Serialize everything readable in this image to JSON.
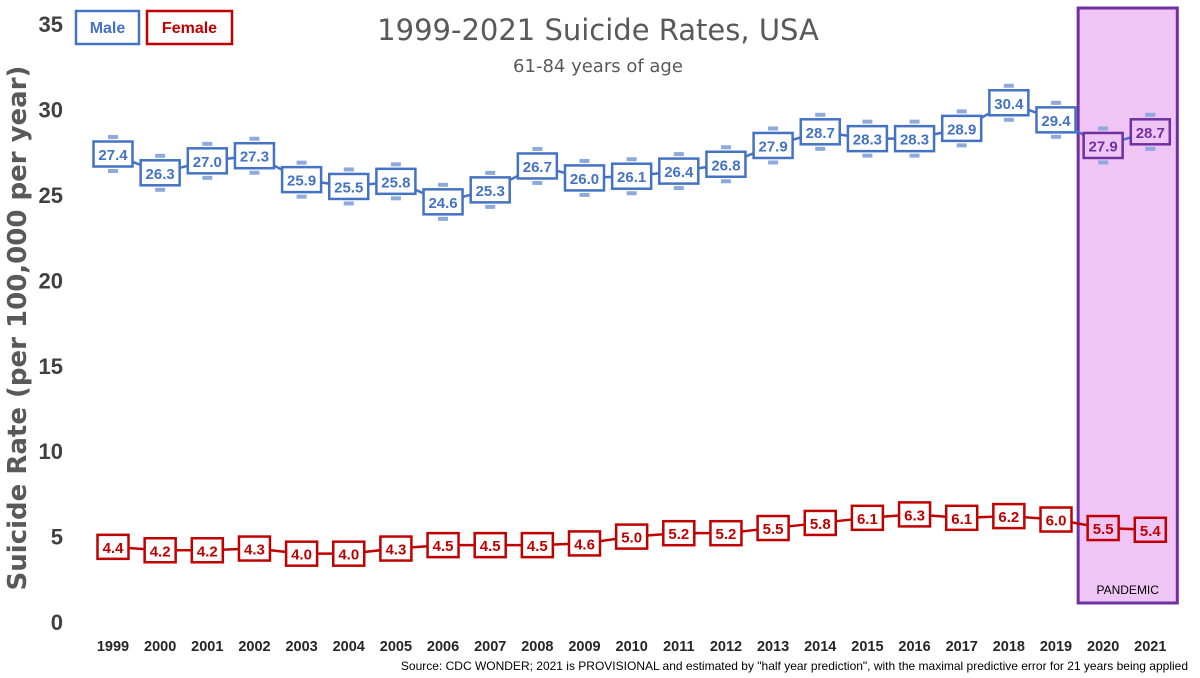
{
  "chart_data": {
    "type": "line",
    "title": "1999-2021 Suicide Rates, USA",
    "subtitle": "61-84 years of age",
    "ylabel": "Suicide Rate (per 100,000 per year)",
    "xlabel": "",
    "ylim": [
      0,
      35
    ],
    "yticks": [
      "0",
      "5",
      "10",
      "15",
      "20",
      "25",
      "30",
      "35"
    ],
    "categories": [
      "1999",
      "2000",
      "2001",
      "2002",
      "2003",
      "2004",
      "2005",
      "2006",
      "2007",
      "2008",
      "2009",
      "2010",
      "2011",
      "2012",
      "2013",
      "2014",
      "2015",
      "2016",
      "2017",
      "2018",
      "2019",
      "2020",
      "2021"
    ],
    "series": [
      {
        "name": "Male",
        "color": "#4472C4",
        "values": [
          27.4,
          26.3,
          27.0,
          27.3,
          25.9,
          25.5,
          25.8,
          24.6,
          25.3,
          26.7,
          26.0,
          26.1,
          26.4,
          26.8,
          27.9,
          28.7,
          28.3,
          28.3,
          28.9,
          30.4,
          29.4,
          27.9,
          28.7
        ],
        "labels": [
          "27.4",
          "26.3",
          "27.0",
          "27.3",
          "25.9",
          "25.5",
          "25.8",
          "24.6",
          "25.3",
          "26.7",
          "26.0",
          "26.1",
          "26.4",
          "26.8",
          "27.9",
          "28.7",
          "28.3",
          "28.3",
          "28.9",
          "30.4",
          "29.4",
          "27.9",
          "28.7"
        ]
      },
      {
        "name": "Female",
        "color": "#C00000",
        "values": [
          4.4,
          4.2,
          4.2,
          4.3,
          4.0,
          4.0,
          4.3,
          4.5,
          4.5,
          4.5,
          4.6,
          5.0,
          5.2,
          5.2,
          5.5,
          5.8,
          6.1,
          6.3,
          6.1,
          6.2,
          6.0,
          5.5,
          5.4
        ],
        "labels": [
          "4.4",
          "4.2",
          "4.2",
          "4.3",
          "4.0",
          "4.0",
          "4.3",
          "4.5",
          "4.5",
          "4.5",
          "4.6",
          "5.0",
          "5.2",
          "5.2",
          "5.5",
          "5.8",
          "6.1",
          "6.3",
          "6.1",
          "6.2",
          "6.0",
          "5.5",
          "5.4"
        ]
      }
    ],
    "highlight": {
      "label": "PANDEMIC",
      "from_category": "2020",
      "to_category": "2021",
      "fill": "#EFC5F5",
      "border": "#7030A0"
    },
    "legend_placement": "top-left",
    "grid": false,
    "source": "Source: CDC WONDER; 2021 is PROVISIONAL and estimated by \"half year prediction\", with the maximal predictive error for 21 years being applied",
    "colors": {
      "in_highlight_label_color": "#7030A0",
      "axis_text": "#404040"
    }
  }
}
